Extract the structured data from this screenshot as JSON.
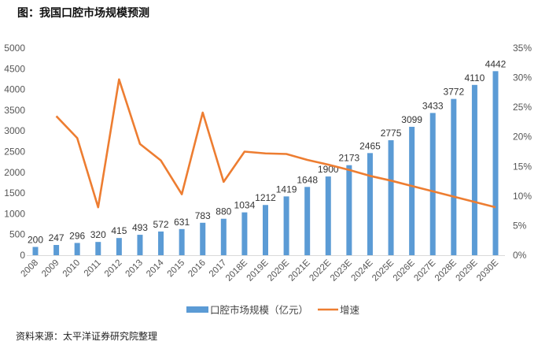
{
  "title": "图：我国口腔市场规模预测",
  "source": "资料来源：太平洋证券研究院整理",
  "chart_data": {
    "type": "bar+line",
    "categories": [
      "2008",
      "2009",
      "2010",
      "2011",
      "2012",
      "2013",
      "2014",
      "2015",
      "2016",
      "2017",
      "2018E",
      "2019E",
      "2020E",
      "2021E",
      "2022E",
      "2023E",
      "2024E",
      "2025E",
      "2026E",
      "2027E",
      "2028E",
      "2029E",
      "2030E"
    ],
    "series": [
      {
        "name": "口腔市场规模（亿元）",
        "type": "bar",
        "axis": "left",
        "color": "#5B9BD5",
        "values": [
          200,
          247,
          296,
          320,
          415,
          493,
          572,
          631,
          783,
          880,
          1034,
          1212,
          1419,
          1648,
          1900,
          2173,
          2465,
          2775,
          3099,
          3433,
          3772,
          4110,
          4442
        ]
      },
      {
        "name": "增速",
        "type": "line",
        "axis": "right",
        "color": "#ED7D31",
        "values": [
          null,
          23.5,
          19.8,
          8.1,
          29.7,
          18.8,
          16.0,
          10.3,
          24.1,
          12.4,
          17.5,
          17.2,
          17.1,
          16.1,
          15.3,
          14.4,
          13.4,
          12.6,
          11.7,
          10.8,
          9.9,
          9.0,
          8.1
        ]
      }
    ],
    "y_left": {
      "range": [
        0,
        5000
      ],
      "ticks": [
        "0",
        "500",
        "1000",
        "1500",
        "2000",
        "2500",
        "3000",
        "3500",
        "4000",
        "4500",
        "5000"
      ]
    },
    "y_right": {
      "range": [
        0,
        35
      ],
      "ticks": [
        "0%",
        "5%",
        "10%",
        "15%",
        "20%",
        "25%",
        "30%",
        "35%"
      ]
    },
    "grid": false,
    "legend": "bottom"
  }
}
